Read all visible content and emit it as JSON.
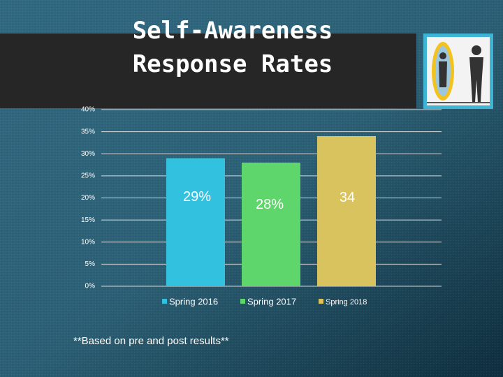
{
  "chart_data": {
    "type": "bar",
    "title": "Self-Awareness Response Rates",
    "categories": [
      "Spring 2016",
      "Spring 2017",
      "Spring 2018"
    ],
    "values": [
      29,
      28,
      34
    ],
    "value_labels": [
      "29%",
      "28%",
      "34"
    ],
    "colors": [
      "#33c1e0",
      "#5ed66b",
      "#d9c35f"
    ],
    "ylim": [
      0,
      40
    ],
    "yticks": [
      {
        "value": 0,
        "label": "0%"
      },
      {
        "value": 5,
        "label": "5%"
      },
      {
        "value": 10,
        "label": "10%"
      },
      {
        "value": 15,
        "label": "15%"
      },
      {
        "value": 20,
        "label": "20%"
      },
      {
        "value": 25,
        "label": "25%"
      },
      {
        "value": 30,
        "label": "30%"
      },
      {
        "value": 35,
        "label": "35%"
      },
      {
        "value": 40,
        "label": "40%"
      }
    ],
    "grid": true,
    "footnote": "**Based on pre and post results**"
  }
}
